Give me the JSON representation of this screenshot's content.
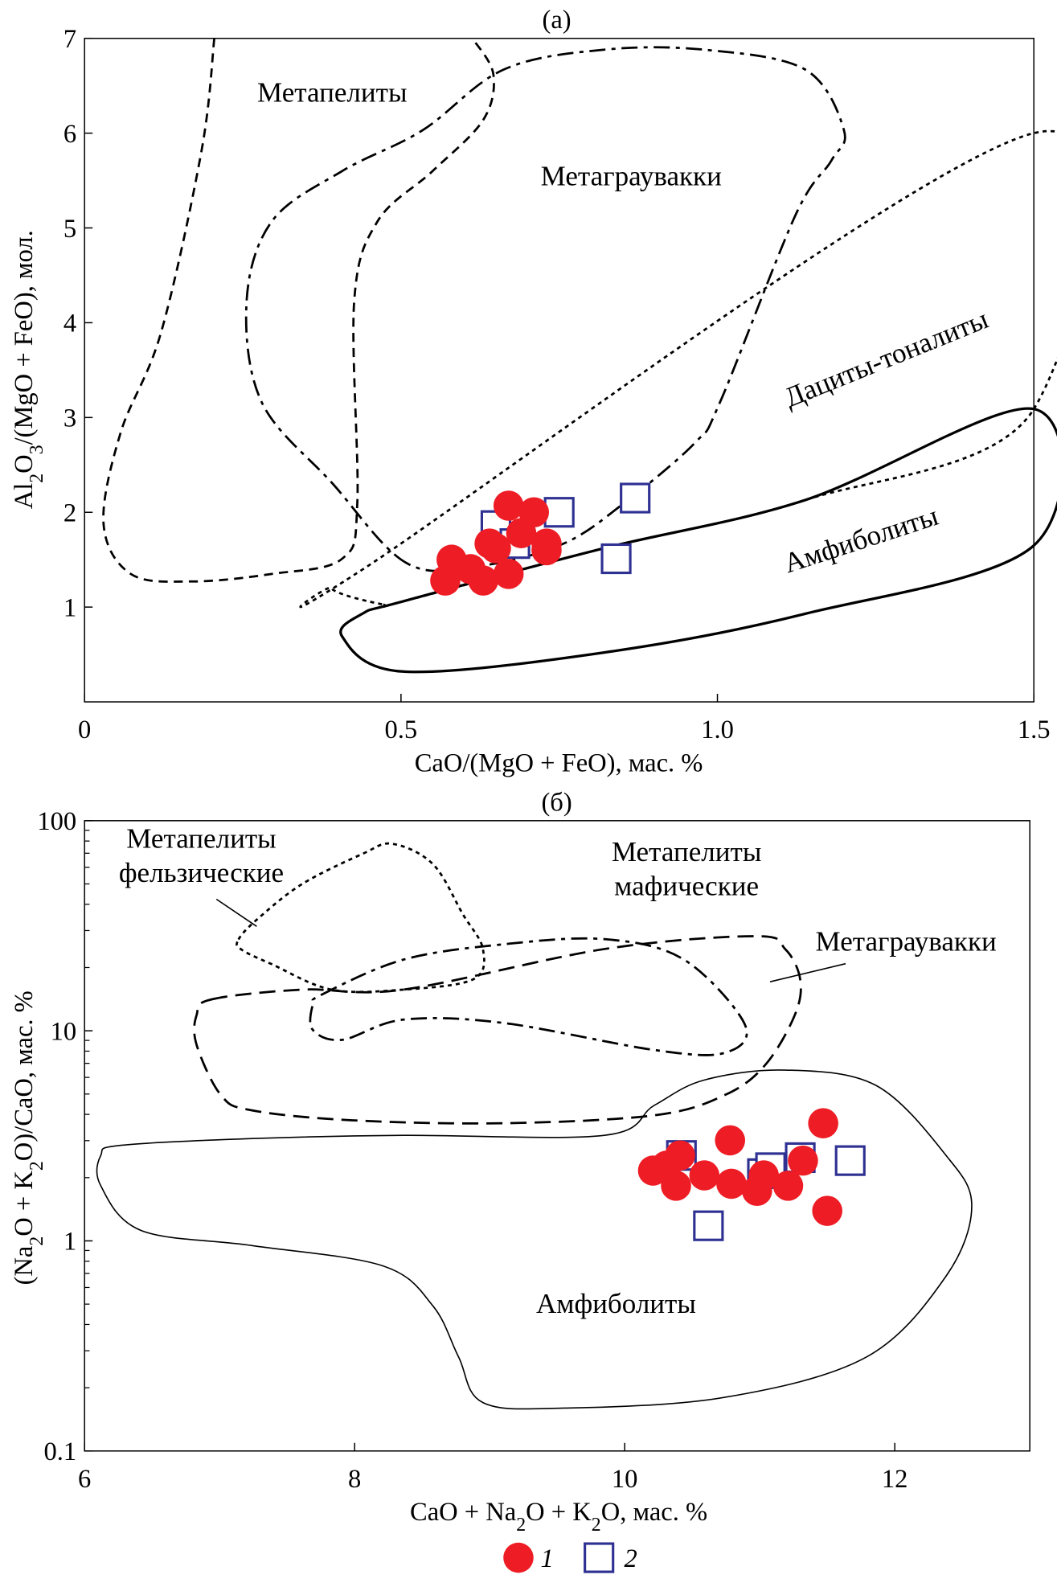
{
  "legend": [
    {
      "marker": "circle",
      "label": "1",
      "color": "#ee1c24"
    },
    {
      "marker": "square",
      "label": "2",
      "color": "#2e3192"
    }
  ],
  "chart_data": [
    {
      "type": "scatter",
      "panel_label": "(а)",
      "xlabel": "CaO/(MgO + FeO), мас. %",
      "ylabel_parts": [
        [
          "Al",
          0
        ],
        [
          "2",
          1
        ],
        [
          "O",
          0
        ],
        [
          "3",
          1
        ],
        [
          "/(MgO + FeO), мол.",
          0
        ]
      ],
      "xlim": [
        0,
        1.5
      ],
      "ylim": [
        0,
        7
      ],
      "xticks": [
        {
          "v": 0,
          "l": "0"
        },
        {
          "v": 0.5,
          "l": "0.5"
        },
        {
          "v": 1.0,
          "l": "1.0"
        },
        {
          "v": 1.5,
          "l": "1.5"
        }
      ],
      "yticks": [
        {
          "v": 1,
          "l": "1"
        },
        {
          "v": 2,
          "l": "2"
        },
        {
          "v": 3,
          "l": "3"
        },
        {
          "v": 4,
          "l": "4"
        },
        {
          "v": 5,
          "l": "5"
        },
        {
          "v": 6,
          "l": "6"
        },
        {
          "v": 7,
          "l": "7"
        }
      ],
      "series": [
        {
          "name": "1",
          "marker": "circle",
          "points": [
            [
              0.67,
              2.07
            ],
            [
              0.71,
              2.0
            ],
            [
              0.58,
              1.5
            ],
            [
              0.57,
              1.28
            ],
            [
              0.63,
              1.28
            ],
            [
              0.67,
              1.35
            ],
            [
              0.64,
              1.67
            ],
            [
              0.69,
              1.78
            ],
            [
              0.73,
              1.67
            ],
            [
              0.73,
              1.6
            ],
            [
              0.61,
              1.4
            ],
            [
              0.65,
              1.62
            ]
          ]
        },
        {
          "name": "2",
          "marker": "square",
          "points": [
            [
              0.75,
              2.0
            ],
            [
              0.87,
              2.15
            ],
            [
              0.84,
              1.51
            ],
            [
              0.65,
              1.86
            ],
            [
              0.68,
              1.67
            ]
          ]
        }
      ],
      "regions": [
        {
          "name": "Метапелиты",
          "style": "short-dash",
          "closed": false,
          "points": [
            [
              0.205,
              7.0
            ],
            [
              0.185,
              5.82
            ],
            [
              0.121,
              3.9
            ],
            [
              0.057,
              2.84
            ],
            [
              0.03,
              1.88
            ],
            [
              0.073,
              1.35
            ],
            [
              0.169,
              1.27
            ],
            [
              0.296,
              1.35
            ],
            [
              0.407,
              1.51
            ],
            [
              0.431,
              2.1
            ],
            [
              0.426,
              4.22
            ],
            [
              0.463,
              5.07
            ],
            [
              0.55,
              5.6
            ],
            [
              0.63,
              6.14
            ],
            [
              0.646,
              6.62
            ],
            [
              0.614,
              6.99
            ]
          ]
        },
        {
          "name": "Метаграувакки",
          "style": "long-dash",
          "closed": true,
          "points": [
            [
              0.51,
              1.46
            ],
            [
              0.391,
              2.31
            ],
            [
              0.28,
              3.16
            ],
            [
              0.256,
              4.22
            ],
            [
              0.296,
              5.07
            ],
            [
              0.407,
              5.6
            ],
            [
              0.534,
              6.03
            ],
            [
              0.662,
              6.67
            ],
            [
              0.82,
              6.88
            ],
            [
              0.98,
              6.88
            ],
            [
              1.139,
              6.67
            ],
            [
              1.2,
              6.03
            ],
            [
              1.18,
              5.71
            ],
            [
              1.123,
              5.13
            ],
            [
              1.004,
              3.16
            ],
            [
              0.964,
              2.73
            ],
            [
              0.853,
              2.1
            ],
            [
              0.757,
              1.67
            ],
            [
              0.63,
              1.44
            ]
          ]
        },
        {
          "name": "Дациты-тоналиты",
          "style": "dotted",
          "closed": true,
          "points": [
            [
              0.47,
              1.03
            ],
            [
              0.39,
              1.2
            ],
            [
              0.44,
              1.4
            ],
            [
              1.5,
              6.0
            ],
            [
              1.5,
              3.09
            ],
            [
              1.139,
              2.13
            ],
            [
              0.82,
              1.62
            ],
            [
              0.503,
              1.06
            ]
          ]
        },
        {
          "name": "Амфиболиты",
          "style": "solid",
          "closed": true,
          "points": [
            [
              0.503,
              1.06
            ],
            [
              0.82,
              1.62
            ],
            [
              1.139,
              2.13
            ],
            [
              1.5,
              3.09
            ],
            [
              1.5,
              1.65
            ],
            [
              1.139,
              0.93
            ],
            [
              0.82,
              0.52
            ],
            [
              0.503,
              0.32
            ],
            [
              0.407,
              0.69
            ],
            [
              0.439,
              0.93
            ]
          ]
        }
      ]
    },
    {
      "type": "scatter",
      "panel_label": "(б)",
      "xlabel_parts": [
        [
          "CaO + Na",
          0
        ],
        [
          "2",
          1
        ],
        [
          "O + K",
          0
        ],
        [
          "2",
          1
        ],
        [
          "O, мас. %",
          0
        ]
      ],
      "ylabel_parts": [
        [
          "(Na",
          0
        ],
        [
          "2",
          1
        ],
        [
          "O + K",
          0
        ],
        [
          "2",
          1
        ],
        [
          "O)/CaO, мас. %",
          0
        ]
      ],
      "xlim": [
        6,
        13
      ],
      "ylim": [
        0.1,
        100
      ],
      "yscale": "log",
      "xticks": [
        {
          "v": 6,
          "l": "6"
        },
        {
          "v": 8,
          "l": "8"
        },
        {
          "v": 10,
          "l": "10"
        },
        {
          "v": 12,
          "l": "12"
        }
      ],
      "yticks": [
        {
          "v": 0.1,
          "l": "0.1"
        },
        {
          "v": 1,
          "l": "1"
        },
        {
          "v": 10,
          "l": "10"
        },
        {
          "v": 100,
          "l": "100"
        }
      ],
      "series": [
        {
          "name": "1",
          "marker": "circle",
          "points": [
            [
              10.21,
              2.16
            ],
            [
              10.31,
              2.28
            ],
            [
              10.41,
              2.55
            ],
            [
              10.38,
              1.83
            ],
            [
              10.59,
              2.05
            ],
            [
              10.78,
              3.01
            ],
            [
              10.79,
              1.87
            ],
            [
              10.98,
              1.73
            ],
            [
              11.03,
              2.05
            ],
            [
              11.21,
              1.83
            ],
            [
              11.32,
              2.41
            ],
            [
              11.47,
              3.63
            ],
            [
              11.5,
              1.39
            ]
          ]
        },
        {
          "name": "2",
          "marker": "square",
          "points": [
            [
              10.42,
              2.55
            ],
            [
              10.62,
              1.18
            ],
            [
              11.02,
              2.09
            ],
            [
              11.08,
              2.23
            ],
            [
              11.3,
              2.49
            ],
            [
              11.67,
              2.41
            ]
          ]
        }
      ],
      "regions": [
        {
          "name": "Метапелиты фельзические",
          "style": "dotted",
          "closed": true,
          "points": [
            [
              7.14,
              27.2
            ],
            [
              7.28,
              34
            ],
            [
              7.61,
              49.9
            ],
            [
              8.06,
              69.6
            ],
            [
              8.28,
              77.6
            ],
            [
              8.58,
              62.1
            ],
            [
              8.8,
              36
            ],
            [
              8.95,
              24.5
            ],
            [
              8.88,
              17.6
            ],
            [
              8.36,
              15.7
            ],
            [
              7.83,
              15.7
            ],
            [
              7.39,
              20.7
            ],
            [
              7.16,
              24.4
            ]
          ]
        },
        {
          "name": "Метапелиты мафические",
          "style": "long-dash",
          "closed": true,
          "points": [
            [
              7.76,
              14.9
            ],
            [
              8.36,
              21.8
            ],
            [
              9.1,
              25.8
            ],
            [
              9.85,
              27.3
            ],
            [
              10.44,
              21.8
            ],
            [
              10.89,
              10.7
            ],
            [
              10.74,
              7.85
            ],
            [
              10.22,
              8.1
            ],
            [
              9.1,
              10.9
            ],
            [
              8.36,
              11.3
            ],
            [
              7.91,
              9.06
            ],
            [
              7.69,
              10.1
            ],
            [
              7.69,
              13.3
            ]
          ]
        },
        {
          "name": "Метаграувакки",
          "style": "dash",
          "closed": true,
          "points": [
            [
              6.94,
              14.1
            ],
            [
              7.61,
              15.7
            ],
            [
              8.36,
              15.7
            ],
            [
              9.85,
              24.5
            ],
            [
              10.97,
              28.2
            ],
            [
              11.19,
              24.4
            ],
            [
              11.3,
              17.5
            ],
            [
              11.26,
              11.9
            ],
            [
              11.04,
              6.87
            ],
            [
              10.74,
              4.94
            ],
            [
              10.22,
              3.96
            ],
            [
              9.1,
              3.63
            ],
            [
              7.98,
              3.75
            ],
            [
              7.24,
              4.18
            ],
            [
              7.01,
              4.94
            ],
            [
              6.83,
              8.56
            ],
            [
              6.83,
              11.9
            ]
          ]
        },
        {
          "name": "Амфиболиты",
          "style": "thin-solid",
          "closed": true,
          "points": [
            [
              6.12,
              2.55
            ],
            [
              6.27,
              2.85
            ],
            [
              7.24,
              3.07
            ],
            [
              8.36,
              3.18
            ],
            [
              9.85,
              3.18
            ],
            [
              10.22,
              4.42
            ],
            [
              10.59,
              5.83
            ],
            [
              11.19,
              6.5
            ],
            [
              11.86,
              5.5
            ],
            [
              12.38,
              2.55
            ],
            [
              12.57,
              1.47
            ],
            [
              12.38,
              0.68
            ],
            [
              11.79,
              0.28
            ],
            [
              10.74,
              0.18
            ],
            [
              9.55,
              0.16
            ],
            [
              8.95,
              0.17
            ],
            [
              8.77,
              0.28
            ],
            [
              8.58,
              0.49
            ],
            [
              8.21,
              0.76
            ],
            [
              7.24,
              0.95
            ],
            [
              6.42,
              1.12
            ],
            [
              6.12,
              1.83
            ]
          ]
        }
      ],
      "region_labels": {
        "felsic_1": "Метапелиты",
        "felsic_2": "фельзические",
        "mafic_1": "Метапелиты",
        "mafic_2": "мафические"
      }
    }
  ]
}
